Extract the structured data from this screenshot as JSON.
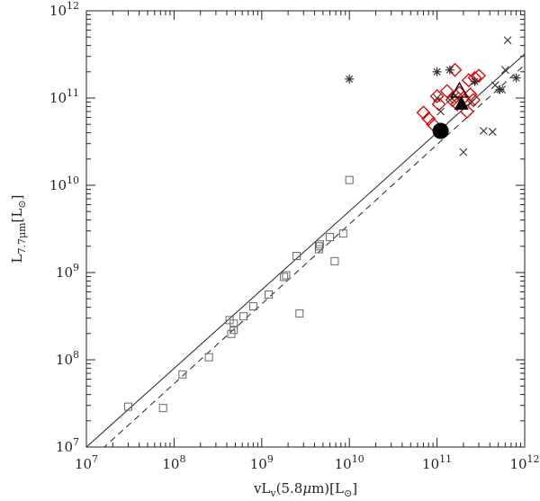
{
  "chart_data": {
    "type": "scatter",
    "xscale": "log",
    "yscale": "log",
    "xlim": [
      10000000.0,
      1000000000000.0
    ],
    "ylim": [
      10000000.0,
      1000000000000.0
    ],
    "xlabel_parts": [
      "vL",
      "v",
      "(5.8",
      "μ",
      "m)[L",
      "⊙",
      "]"
    ],
    "ylabel_parts": [
      "L",
      "7.7μm",
      "[L",
      "⊙",
      "]"
    ],
    "x_ticks": [
      {
        "value": 10000000.0,
        "base": "10",
        "exp": "7"
      },
      {
        "value": 100000000.0,
        "base": "10",
        "exp": "8"
      },
      {
        "value": 1000000000.0,
        "base": "10",
        "exp": "9"
      },
      {
        "value": 10000000000.0,
        "base": "10",
        "exp": "10"
      },
      {
        "value": 100000000000.0,
        "base": "10",
        "exp": "11"
      },
      {
        "value": 1000000000000.0,
        "base": "10",
        "exp": "12"
      }
    ],
    "y_ticks": [
      {
        "value": 10000000.0,
        "base": "10",
        "exp": "7"
      },
      {
        "value": 100000000.0,
        "base": "10",
        "exp": "8"
      },
      {
        "value": 1000000000.0,
        "base": "10",
        "exp": "9"
      },
      {
        "value": 10000000000.0,
        "base": "10",
        "exp": "10"
      },
      {
        "value": 100000000000.0,
        "base": "10",
        "exp": "11"
      },
      {
        "value": 1000000000000.0,
        "base": "10",
        "exp": "12"
      }
    ],
    "lines": [
      {
        "style": "solid",
        "x": [
          10000000.0,
          1000000000000.0
        ],
        "y": [
          10000000.0,
          320000000000.0
        ]
      },
      {
        "style": "dashed",
        "x": [
          10000000.0,
          1000000000000.0
        ],
        "y": [
          6500000.0,
          240000000000.0
        ]
      }
    ],
    "series": [
      {
        "marker": "open-square",
        "color": "#666666",
        "x": [
          30000000.0,
          75000000.0,
          125000000.0,
          250000000.0,
          430000000.0,
          450000000.0,
          480000000.0,
          480000000.0,
          620000000.0,
          800000000.0,
          1200000000.0,
          1800000000.0,
          1900000000.0,
          2500000000.0,
          2700000000.0,
          4500000000.0,
          4500000000.0,
          4600000000.0,
          6000000000.0,
          6800000000.0,
          8500000000.0,
          10000000000.0
        ],
        "y": [
          29000000.0,
          28000000.0,
          68000000.0,
          107000000.0,
          285000000.0,
          198000000.0,
          220000000.0,
          260000000.0,
          315000000.0,
          410000000.0,
          560000000.0,
          890000000.0,
          930000000.0,
          1550000000.0,
          340000000.0,
          1850000000.0,
          2000000000.0,
          2100000000.0,
          2550000000.0,
          1350000000.0,
          2800000000.0,
          11500000000.0
        ]
      },
      {
        "marker": "open-diamond",
        "color": "#dd0000",
        "x": [
          70000000000.0,
          80000000000.0,
          90000000000.0,
          100000000000.0,
          105000000000.0,
          130000000000.0,
          150000000000.0,
          160000000000.0,
          165000000000.0,
          170000000000.0,
          180000000000.0,
          200000000000.0,
          220000000000.0,
          230000000000.0,
          240000000000.0,
          260000000000.0,
          270000000000.0,
          300000000000.0
        ],
        "y": [
          68000000000.0,
          58000000000.0,
          50000000000.0,
          105000000000.0,
          85000000000.0,
          120000000000.0,
          95000000000.0,
          210000000000.0,
          105000000000.0,
          85000000000.0,
          115000000000.0,
          100000000000.0,
          70000000000.0,
          160000000000.0,
          110000000000.0,
          95000000000.0,
          170000000000.0,
          180000000000.0
        ]
      },
      {
        "marker": "asterisk",
        "color": "#333333",
        "x": [
          10000000000.0,
          100000000000.0,
          140000000000.0,
          270000000000.0,
          520000000000.0,
          800000000000.0
        ],
        "y": [
          165000000000.0,
          200000000000.0,
          210000000000.0,
          155000000000.0,
          125000000000.0,
          170000000000.0
        ]
      },
      {
        "marker": "cross",
        "color": "#333333",
        "x": [
          100000000000.0,
          110000000000.0,
          160000000000.0,
          200000000000.0,
          250000000000.0,
          340000000000.0,
          430000000000.0,
          460000000000.0,
          550000000000.0,
          600000000000.0,
          640000000000.0,
          140000000000.0
        ],
        "y": [
          100000000000.0,
          70000000000.0,
          105000000000.0,
          24000000000.0,
          90000000000.0,
          42000000000.0,
          41000000000.0,
          140000000000.0,
          125000000000.0,
          210000000000.0,
          460000000000.0,
          95000000000.0
        ]
      },
      {
        "marker": "filled-circle",
        "color": "#000000",
        "x": [
          110000000000.0
        ],
        "y": [
          42000000000.0
        ]
      },
      {
        "marker": "filled-triangle",
        "color": "#000000",
        "x": [
          190000000000.0
        ],
        "y": [
          85000000000.0
        ]
      },
      {
        "marker": "open-triangle",
        "color": "#000000",
        "x": [
          180000000000.0
        ],
        "y": [
          118000000000.0
        ]
      }
    ]
  }
}
